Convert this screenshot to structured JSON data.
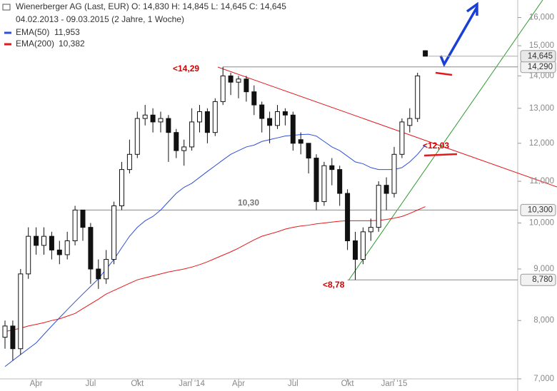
{
  "chart_data": {
    "type": "candlestick",
    "header": "Wienerberger AG (Last, EUR)  O: 14,830  H: 14,845  L: 14,645  C: 14,645",
    "subheader": "04.02.2013 - 09.03.2015 (2 Jahre, 1 Woche)",
    "log_scale": true,
    "ylim": [
      7000,
      16600
    ],
    "yticks": [
      {
        "value": 7000,
        "label": "7,000"
      },
      {
        "value": 8000,
        "label": "8,000"
      },
      {
        "value": 9000,
        "label": "9,000"
      },
      {
        "value": 10000,
        "label": "10,000"
      },
      {
        "value": 11000,
        "label": "11,000"
      },
      {
        "value": 12000,
        "label": "12,000"
      },
      {
        "value": 13000,
        "label": "13,000"
      },
      {
        "value": 14000,
        "label": "14,000"
      },
      {
        "value": 15000,
        "label": "15,000"
      },
      {
        "value": 16000,
        "label": "16,000"
      }
    ],
    "categories": [
      null,
      null,
      null,
      null,
      "Apr",
      null,
      null,
      null,
      null,
      null,
      null,
      "Jul",
      null,
      null,
      null,
      null,
      null,
      "Okt",
      null,
      null,
      null,
      null,
      null,
      null,
      "Jan '14",
      null,
      null,
      null,
      null,
      null,
      "Apr",
      null,
      null,
      null,
      null,
      null,
      null,
      "Jul",
      null,
      null,
      null,
      null,
      null,
      null,
      "Okt",
      null,
      null,
      null,
      null,
      null,
      "Jan '15",
      null,
      null,
      null,
      null
    ],
    "open": [
      7700,
      7900,
      7500,
      8900,
      9700,
      9500,
      9700,
      9400,
      9300,
      9600,
      10300,
      9900,
      9000,
      8800,
      9200,
      10400,
      11300,
      11700,
      12700,
      12800,
      12600,
      12700,
      12300,
      11800,
      11900,
      12600,
      12900,
      12300,
      13200,
      14000,
      13800,
      13900,
      13500,
      13100,
      12700,
      12500,
      12900,
      12800,
      12100,
      12000,
      11600,
      10500,
      11400,
      11300,
      10700,
      9600,
      9200,
      9800,
      9900,
      10900,
      10700,
      11700,
      12500,
      12700,
      14830
    ],
    "high": [
      8000,
      8000,
      9000,
      9900,
      9900,
      9900,
      9800,
      9600,
      9800,
      10400,
      10300,
      10000,
      9200,
      9400,
      10500,
      11500,
      12100,
      12900,
      13100,
      13000,
      12900,
      12800,
      12400,
      12100,
      13000,
      13100,
      13000,
      13300,
      14290,
      14100,
      14000,
      14000,
      13700,
      13200,
      12900,
      13100,
      13000,
      12900,
      12300,
      12000,
      11700,
      11500,
      11600,
      11400,
      10800,
      9800,
      9900,
      10100,
      11000,
      11100,
      11900,
      12700,
      13000,
      14100,
      14845
    ],
    "low": [
      7500,
      7300,
      7400,
      8800,
      9300,
      9300,
      9200,
      9100,
      9200,
      9500,
      9600,
      8700,
      8600,
      8700,
      9100,
      10300,
      11200,
      11600,
      12500,
      12300,
      12300,
      11500,
      11600,
      11400,
      11800,
      12300,
      12000,
      12200,
      13100,
      13400,
      13300,
      13200,
      12800,
      12300,
      12000,
      12400,
      12500,
      11800,
      11700,
      11200,
      10300,
      10400,
      10900,
      10400,
      9400,
      8780,
      9100,
      9600,
      9800,
      10300,
      10600,
      11600,
      12300,
      12600,
      14645
    ],
    "close": [
      7900,
      7500,
      8900,
      9700,
      9500,
      9700,
      9400,
      9300,
      9600,
      10300,
      9900,
      9000,
      8800,
      9200,
      10400,
      11300,
      11700,
      12700,
      12800,
      12600,
      12700,
      12300,
      11800,
      11900,
      12600,
      12900,
      12300,
      13200,
      14000,
      13800,
      13900,
      13500,
      13100,
      12700,
      12500,
      12900,
      12800,
      12000,
      12000,
      11600,
      10500,
      11400,
      11300,
      10700,
      9600,
      9200,
      9800,
      9900,
      10900,
      10700,
      11700,
      12600,
      12700,
      14000,
      14645
    ],
    "series": [
      {
        "name": "EMA(50)",
        "last_label": "11,953",
        "color": "#2f4fd8",
        "values": [
          7200,
          7300,
          7400,
          7500,
          7600,
          7750,
          7900,
          8050,
          8200,
          8350,
          8500,
          8650,
          8800,
          9000,
          9200,
          9450,
          9700,
          9900,
          10050,
          10150,
          10300,
          10500,
          10700,
          10850,
          10950,
          11100,
          11250,
          11400,
          11550,
          11700,
          11800,
          11900,
          11950,
          12050,
          12100,
          12150,
          12200,
          12220,
          12240,
          12250,
          12200,
          12050,
          11900,
          11800,
          11650,
          11500,
          11450,
          11350,
          11300,
          11300,
          11300,
          11350,
          11500,
          11700,
          11953
        ]
      },
      {
        "name": "EMA(200)",
        "last_label": "10,382",
        "color": "#e31a1c",
        "values": [
          7800,
          7830,
          7860,
          7900,
          7930,
          7960,
          8000,
          8030,
          8080,
          8130,
          8220,
          8310,
          8400,
          8500,
          8570,
          8640,
          8710,
          8780,
          8820,
          8860,
          8900,
          8940,
          8970,
          9000,
          9040,
          9090,
          9150,
          9220,
          9290,
          9360,
          9440,
          9530,
          9620,
          9700,
          9750,
          9800,
          9860,
          9900,
          9930,
          9950,
          9980,
          10000,
          10020,
          10040,
          10050,
          10050,
          10050,
          10050,
          10060,
          10080,
          10110,
          10150,
          10220,
          10300,
          10382
        ]
      }
    ],
    "levels": [
      {
        "value": 14290,
        "label": "14,290",
        "from": 28
      },
      {
        "value": 10300,
        "label": "10,300",
        "from": 9
      },
      {
        "value": 8780,
        "label": "8,780",
        "from": 44
      }
    ],
    "last_price": {
      "value": 14645,
      "label": "14,645"
    },
    "annotations": [
      "<14,29",
      "10,30",
      "<8,78",
      "<12,03"
    ]
  }
}
